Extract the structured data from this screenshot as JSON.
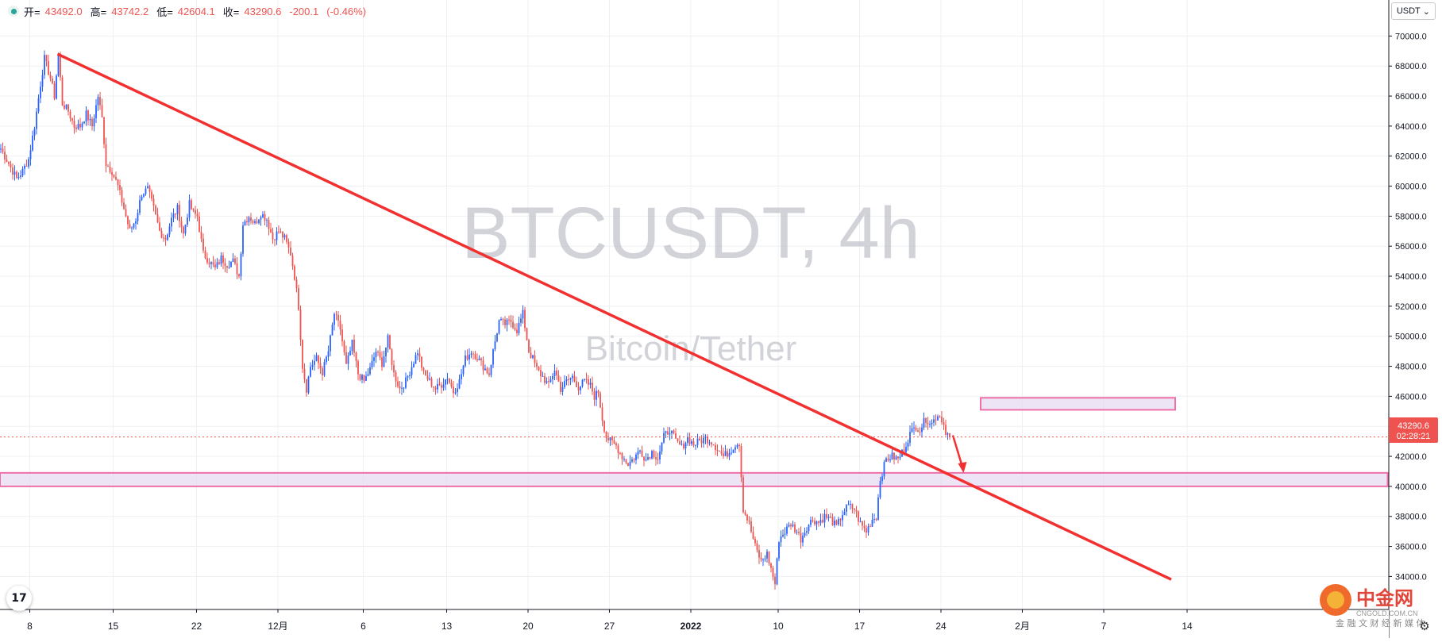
{
  "header": {
    "open_label": "开=",
    "open": "43492.0",
    "high_label": "高=",
    "high": "43742.2",
    "low_label": "低=",
    "low": "42604.1",
    "close_label": "收=",
    "close": "43290.6",
    "change": "-200.1",
    "change_pct": "(-0.46%)"
  },
  "currency": {
    "label": "USDT",
    "chevron": "⌄"
  },
  "watermark": {
    "symbol": "BTCUSDT, 4h",
    "pair": "Bitcoin/Tether"
  },
  "price_tag": {
    "price": "43290.6",
    "countdown": "02:28:21"
  },
  "brand": {
    "name": "中金网",
    "url": "CNGOLD.COM.CN",
    "tagline": "金 融 文 财 经 新 媒 体"
  },
  "logo_text": "17",
  "colors": {
    "up": "#2962ff",
    "down": "#ef5350",
    "trend": "#f23030",
    "zone_fill": "#e6d8f2",
    "zone_border": "#ef6fa8",
    "grid": "#eef0f3",
    "price_tag": "#ef5350"
  },
  "icons": {
    "settings": "gear-icon",
    "status": "live-dot-icon",
    "logo": "tradingview-logo-icon"
  },
  "chart_data": {
    "type": "candlestick",
    "timeframe": "4h",
    "y_ticks": [
      "34000.0",
      "36000.0",
      "38000.0",
      "40000.0",
      "42000.0",
      "44000.0",
      "46000.0",
      "48000.0",
      "50000.0",
      "52000.0",
      "54000.0",
      "56000.0",
      "58000.0",
      "60000.0",
      "62000.0",
      "64000.0",
      "66000.0",
      "68000.0",
      "70000.0"
    ],
    "ylim": [
      31800,
      72400
    ],
    "x_ticks": [
      "8",
      "15",
      "22",
      "12月",
      "6",
      "13",
      "20",
      "27",
      "2022",
      "10",
      "17",
      "24",
      "2月",
      "7",
      "14"
    ],
    "x_tick_index": [
      15,
      57,
      99,
      140,
      183,
      225,
      266,
      307,
      348,
      392,
      433,
      474,
      515,
      556,
      598
    ],
    "price_path": [
      [
        0,
        62500
      ],
      [
        4,
        61500
      ],
      [
        8,
        60500
      ],
      [
        11,
        61000
      ],
      [
        14,
        61800
      ],
      [
        17,
        64000
      ],
      [
        20,
        66800
      ],
      [
        22,
        68500
      ],
      [
        25,
        67200
      ],
      [
        27,
        66000
      ],
      [
        29,
        68800
      ],
      [
        31,
        65500
      ],
      [
        34,
        65000
      ],
      [
        37,
        64000
      ],
      [
        40,
        64000
      ],
      [
        43,
        64800
      ],
      [
        46,
        64000
      ],
      [
        49,
        66000
      ],
      [
        51,
        64500
      ],
      [
        53,
        61500
      ],
      [
        56,
        61000
      ],
      [
        59,
        60000
      ],
      [
        62,
        58500
      ],
      [
        65,
        57000
      ],
      [
        68,
        57800
      ],
      [
        71,
        59500
      ],
      [
        74,
        59800
      ],
      [
        77,
        58500
      ],
      [
        80,
        57000
      ],
      [
        83,
        56500
      ],
      [
        86,
        57800
      ],
      [
        89,
        58500
      ],
      [
        92,
        56800
      ],
      [
        95,
        58800
      ],
      [
        97,
        58200
      ],
      [
        99,
        58000
      ],
      [
        102,
        55500
      ],
      [
        105,
        55000
      ],
      [
        108,
        54500
      ],
      [
        111,
        55200
      ],
      [
        114,
        54800
      ],
      [
        117,
        55000
      ],
      [
        120,
        54000
      ],
      [
        122,
        57500
      ],
      [
        125,
        58000
      ],
      [
        128,
        57500
      ],
      [
        131,
        58200
      ],
      [
        134,
        57800
      ],
      [
        137,
        56500
      ],
      [
        140,
        57000
      ],
      [
        143,
        56500
      ],
      [
        146,
        55500
      ],
      [
        148,
        54000
      ],
      [
        150,
        52000
      ],
      [
        152,
        48000
      ],
      [
        154,
        46500
      ],
      [
        156,
        48000
      ],
      [
        159,
        48500
      ],
      [
        162,
        47600
      ],
      [
        165,
        49000
      ],
      [
        168,
        51500
      ],
      [
        171,
        50500
      ],
      [
        174,
        48000
      ],
      [
        177,
        49500
      ],
      [
        180,
        47500
      ],
      [
        183,
        47000
      ],
      [
        186,
        47800
      ],
      [
        189,
        49000
      ],
      [
        192,
        48200
      ],
      [
        195,
        49800
      ],
      [
        198,
        47500
      ],
      [
        201,
        46500
      ],
      [
        204,
        47000
      ],
      [
        207,
        48000
      ],
      [
        210,
        49000
      ],
      [
        213,
        47500
      ],
      [
        216,
        47000
      ],
      [
        219,
        46500
      ],
      [
        222,
        46800
      ],
      [
        225,
        47300
      ],
      [
        228,
        46300
      ],
      [
        231,
        47000
      ],
      [
        234,
        48500
      ],
      [
        237,
        49000
      ],
      [
        240,
        48600
      ],
      [
        243,
        48000
      ],
      [
        246,
        47500
      ],
      [
        248,
        49000
      ],
      [
        251,
        51000
      ],
      [
        254,
        50800
      ],
      [
        257,
        51000
      ],
      [
        260,
        50400
      ],
      [
        263,
        51500
      ],
      [
        266,
        49000
      ],
      [
        268,
        48500
      ],
      [
        270,
        47800
      ],
      [
        273,
        47300
      ],
      [
        276,
        46700
      ],
      [
        279,
        47800
      ],
      [
        282,
        46500
      ],
      [
        285,
        47000
      ],
      [
        288,
        47300
      ],
      [
        291,
        46600
      ],
      [
        294,
        47000
      ],
      [
        297,
        46700
      ],
      [
        299,
        46000
      ],
      [
        301,
        46300
      ],
      [
        303,
        44500
      ],
      [
        305,
        43300
      ],
      [
        307,
        43000
      ],
      [
        310,
        42700
      ],
      [
        313,
        42000
      ],
      [
        316,
        41500
      ],
      [
        319,
        41900
      ],
      [
        322,
        42400
      ],
      [
        325,
        41800
      ],
      [
        328,
        42300
      ],
      [
        331,
        41900
      ],
      [
        334,
        43300
      ],
      [
        337,
        43800
      ],
      [
        340,
        43000
      ],
      [
        343,
        42600
      ],
      [
        346,
        43200
      ],
      [
        349,
        42800
      ],
      [
        352,
        43000
      ],
      [
        355,
        43200
      ],
      [
        358,
        43000
      ],
      [
        361,
        42500
      ],
      [
        364,
        42000
      ],
      [
        367,
        42300
      ],
      [
        370,
        42800
      ],
      [
        372,
        42900
      ],
      [
        374,
        38500
      ],
      [
        377,
        37500
      ],
      [
        380,
        36000
      ],
      [
        383,
        35000
      ],
      [
        386,
        35500
      ],
      [
        388,
        34500
      ],
      [
        390,
        33500
      ],
      [
        392,
        36500
      ],
      [
        395,
        37000
      ],
      [
        398,
        37500
      ],
      [
        401,
        37000
      ],
      [
        403,
        36500
      ],
      [
        406,
        37300
      ],
      [
        409,
        37800
      ],
      [
        412,
        37600
      ],
      [
        415,
        38000
      ],
      [
        418,
        37800
      ],
      [
        421,
        37300
      ],
      [
        424,
        38200
      ],
      [
        427,
        38700
      ],
      [
        430,
        38500
      ],
      [
        433,
        37500
      ],
      [
        436,
        37000
      ],
      [
        439,
        37800
      ],
      [
        441,
        38000
      ],
      [
        443,
        40500
      ],
      [
        446,
        41800
      ],
      [
        449,
        42000
      ],
      [
        452,
        41800
      ],
      [
        455,
        42500
      ],
      [
        458,
        43500
      ],
      [
        461,
        44000
      ],
      [
        463,
        43800
      ],
      [
        466,
        44500
      ],
      [
        469,
        44200
      ],
      [
        472,
        44800
      ],
      [
        474,
        44500
      ],
      [
        476,
        43700
      ],
      [
        478,
        43300
      ]
    ],
    "volatility": 550,
    "zones": [
      {
        "from": 45100,
        "to": 45900
      },
      {
        "from": 40000,
        "to": 40900
      }
    ],
    "trendline": {
      "start": [
        29,
        68800
      ],
      "end": [
        590,
        33800
      ]
    },
    "projection_arrow": {
      "from": [
        480,
        43400
      ],
      "to": [
        485,
        41000
      ]
    },
    "last_price": 43290.6
  }
}
